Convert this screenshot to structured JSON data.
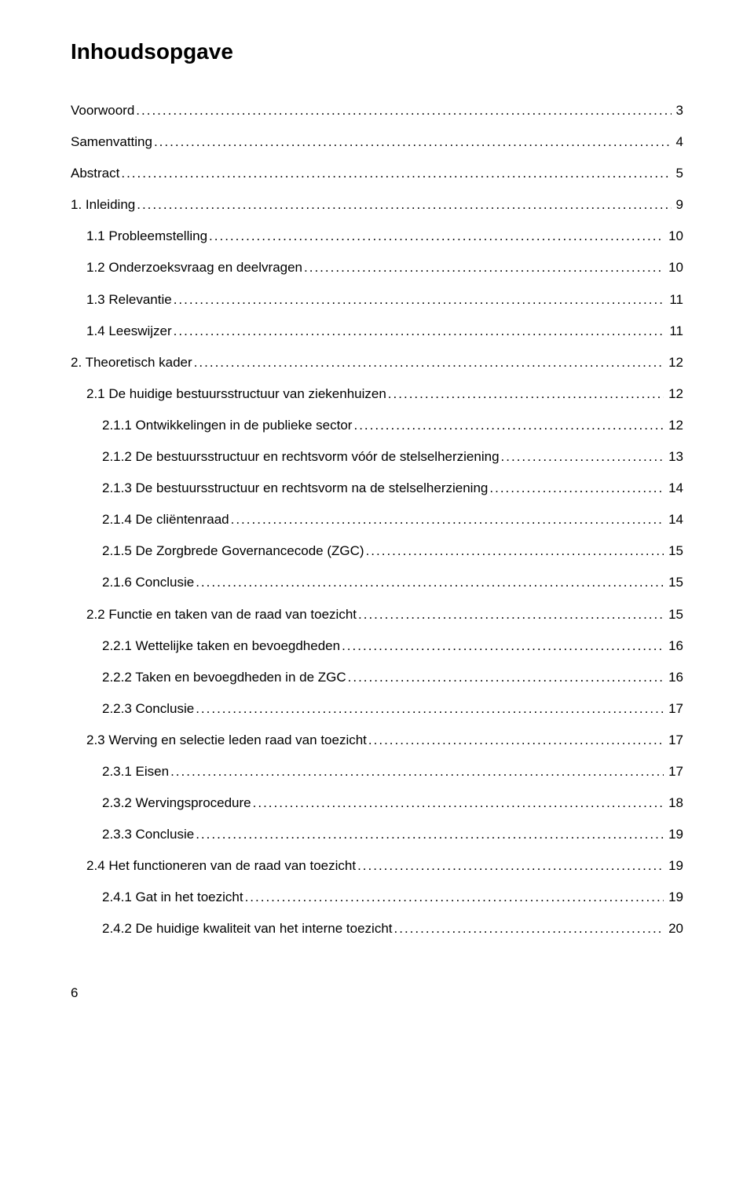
{
  "title": "Inhoudsopgave",
  "footer_page": "6",
  "toc": [
    {
      "label": "Voorwoord",
      "page": "3",
      "indent": 0
    },
    {
      "label": "Samenvatting",
      "page": "4",
      "indent": 0
    },
    {
      "label": "Abstract",
      "page": "5",
      "indent": 0
    },
    {
      "label": "1. Inleiding",
      "page": "9",
      "indent": 0
    },
    {
      "label": "1.1 Probleemstelling",
      "page": "10",
      "indent": 1
    },
    {
      "label": "1.2 Onderzoeksvraag en deelvragen",
      "page": "10",
      "indent": 1
    },
    {
      "label": "1.3 Relevantie",
      "page": "11",
      "indent": 1
    },
    {
      "label": "1.4 Leeswijzer",
      "page": "11",
      "indent": 1
    },
    {
      "label": "2. Theoretisch kader",
      "page": "12",
      "indent": 0
    },
    {
      "label": "2.1 De huidige bestuursstructuur van ziekenhuizen",
      "page": "12",
      "indent": 1
    },
    {
      "label": "2.1.1 Ontwikkelingen in de publieke sector",
      "page": "12",
      "indent": 2
    },
    {
      "label": "2.1.2 De bestuursstructuur en rechtsvorm vóór de stelselherziening",
      "page": "13",
      "indent": 2
    },
    {
      "label": "2.1.3 De bestuursstructuur en rechtsvorm na de stelselherziening",
      "page": "14",
      "indent": 2
    },
    {
      "label": "2.1.4 De cliëntenraad",
      "page": "14",
      "indent": 2
    },
    {
      "label": "2.1.5 De Zorgbrede Governancecode (ZGC)",
      "page": "15",
      "indent": 2
    },
    {
      "label": "2.1.6 Conclusie",
      "page": "15",
      "indent": 2
    },
    {
      "label": "2.2 Functie en taken van de raad van toezicht",
      "page": "15",
      "indent": 1
    },
    {
      "label": "2.2.1 Wettelijke taken en bevoegdheden",
      "page": "16",
      "indent": 2
    },
    {
      "label": "2.2.2 Taken en bevoegdheden in de ZGC",
      "page": "16",
      "indent": 2
    },
    {
      "label": "2.2.3 Conclusie",
      "page": "17",
      "indent": 2
    },
    {
      "label": "2.3 Werving en selectie leden raad van toezicht",
      "page": "17",
      "indent": 1
    },
    {
      "label": "2.3.1 Eisen",
      "page": "17",
      "indent": 2
    },
    {
      "label": "2.3.2 Wervingsprocedure",
      "page": "18",
      "indent": 2
    },
    {
      "label": "2.3.3 Conclusie",
      "page": "19",
      "indent": 2
    },
    {
      "label": "2.4 Het functioneren van de raad van toezicht",
      "page": "19",
      "indent": 1
    },
    {
      "label": "2.4.1 Gat in het toezicht",
      "page": "19",
      "indent": 2
    },
    {
      "label": "2.4.2 De huidige kwaliteit van het interne toezicht",
      "page": "20",
      "indent": 2
    }
  ]
}
